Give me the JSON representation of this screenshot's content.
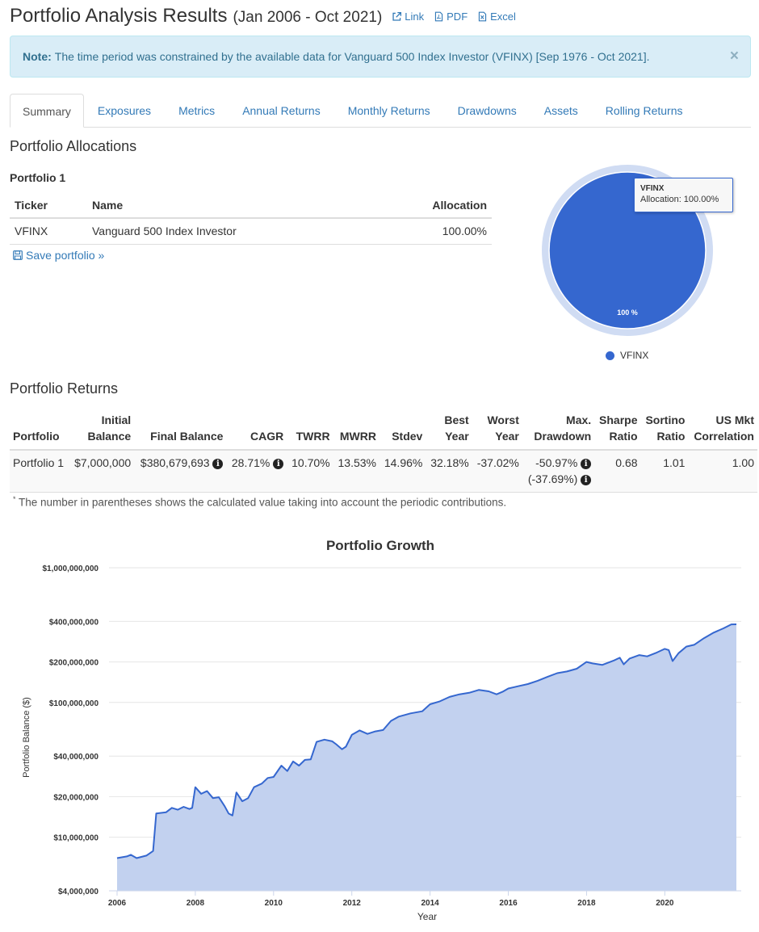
{
  "header": {
    "title": "Portfolio Analysis Results",
    "subtitle": "(Jan 2006 - Oct 2021)",
    "link_label": "Link",
    "pdf_label": "PDF",
    "excel_label": "Excel"
  },
  "alert": {
    "strong": "Note:",
    "text": "The time period was constrained by the available data for Vanguard 500 Index Investor (VFINX) [Sep 1976 - Oct 2021].",
    "close": "×"
  },
  "tabs": [
    "Summary",
    "Exposures",
    "Metrics",
    "Annual Returns",
    "Monthly Returns",
    "Drawdowns",
    "Assets",
    "Rolling Returns"
  ],
  "allocations": {
    "heading": "Portfolio Allocations",
    "portfolio_name": "Portfolio 1",
    "columns": [
      "Ticker",
      "Name",
      "Allocation"
    ],
    "rows": [
      {
        "ticker": "VFINX",
        "name": "Vanguard 500 Index Investor",
        "allocation": "100.00%"
      }
    ],
    "save_label": "Save portfolio »",
    "pie": {
      "tooltip_title": "VFINX",
      "tooltip_text": "Allocation: 100.00%",
      "slice_label": "100 %",
      "legend": "VFINX",
      "color": "#3567cf"
    }
  },
  "returns": {
    "heading": "Portfolio Returns",
    "columns": [
      [
        "Portfolio"
      ],
      [
        "Initial",
        "Balance"
      ],
      [
        "Final Balance"
      ],
      [
        "CAGR"
      ],
      [
        "TWRR"
      ],
      [
        "MWRR"
      ],
      [
        "Stdev"
      ],
      [
        "Best",
        "Year"
      ],
      [
        "Worst",
        "Year"
      ],
      [
        "Max.",
        "Drawdown"
      ],
      [
        "Sharpe",
        "Ratio"
      ],
      [
        "Sortino",
        "Ratio"
      ],
      [
        "US Mkt",
        "Correlation"
      ]
    ],
    "row": {
      "portfolio": "Portfolio 1",
      "initial_balance": "$7,000,000",
      "final_balance": "$380,679,693",
      "cagr": "28.71%",
      "twrr": "10.70%",
      "mwrr": "13.53%",
      "stdev": "14.96%",
      "best_year": "32.18%",
      "worst_year": "-37.02%",
      "max_drawdown": "-50.97%",
      "max_drawdown_contrib": "(-37.69%)",
      "sharpe": "0.68",
      "sortino": "1.01",
      "us_mkt_corr": "1.00"
    },
    "footnote_mark": "*",
    "footnote": "The number in parentheses shows the calculated value taking into account the periodic contributions."
  },
  "chart_data": {
    "type": "area",
    "title": "Portfolio Growth",
    "xlabel": "Year",
    "ylabel": "Portfolio Balance ($)",
    "yscale": "log",
    "ylim": [
      4000000,
      1000000000
    ],
    "xlim": [
      2006,
      2021.83
    ],
    "y_ticks": [
      {
        "v": 4000000,
        "label": "$4,000,000"
      },
      {
        "v": 10000000,
        "label": "$10,000,000"
      },
      {
        "v": 20000000,
        "label": "$20,000,000"
      },
      {
        "v": 40000000,
        "label": "$40,000,000"
      },
      {
        "v": 100000000,
        "label": "$100,000,000"
      },
      {
        "v": 200000000,
        "label": "$200,000,000"
      },
      {
        "v": 400000000,
        "label": "$400,000,000"
      },
      {
        "v": 1000000000,
        "label": "$1,000,000,000"
      }
    ],
    "x_ticks": [
      "2006",
      "2008",
      "2010",
      "2012",
      "2014",
      "2016",
      "2018",
      "2020"
    ],
    "colors": {
      "line": "#3567cf",
      "fill": "#c2d1ef"
    },
    "series": [
      {
        "x": [
          2006.0,
          2006.25,
          2006.35,
          2006.5,
          2006.75,
          2006.92,
          2007.0,
          2007.25,
          2007.4,
          2007.55,
          2007.7,
          2007.85,
          2007.92,
          2008.0,
          2008.15,
          2008.3,
          2008.45,
          2008.6,
          2008.75,
          2008.85,
          2008.95,
          2009.05,
          2009.2,
          2009.35,
          2009.5,
          2009.7,
          2009.85,
          2010.0,
          2010.2,
          2010.35,
          2010.5,
          2010.65,
          2010.8,
          2010.95,
          2011.1,
          2011.3,
          2011.5,
          2011.6,
          2011.75,
          2011.85,
          2012.0,
          2012.2,
          2012.4,
          2012.6,
          2012.8,
          2013.0,
          2013.2,
          2013.5,
          2013.8,
          2014.0,
          2014.25,
          2014.5,
          2014.75,
          2015.0,
          2015.25,
          2015.5,
          2015.7,
          2015.85,
          2016.0,
          2016.25,
          2016.5,
          2016.75,
          2017.0,
          2017.25,
          2017.5,
          2017.75,
          2018.0,
          2018.15,
          2018.4,
          2018.7,
          2018.85,
          2018.95,
          2019.1,
          2019.35,
          2019.55,
          2019.8,
          2020.0,
          2020.1,
          2020.2,
          2020.35,
          2020.55,
          2020.75,
          2021.0,
          2021.25,
          2021.5,
          2021.7,
          2021.83
        ],
        "y": [
          7000000,
          7200000,
          7400000,
          7000000,
          7300000,
          7900000,
          15000000,
          15300000,
          16500000,
          16000000,
          16800000,
          16200000,
          16500000,
          23500000,
          21000000,
          22000000,
          19500000,
          19800000,
          17000000,
          15000000,
          14500000,
          21500000,
          18500000,
          19500000,
          23500000,
          25000000,
          27500000,
          28000000,
          34000000,
          31000000,
          36500000,
          34000000,
          37500000,
          37800000,
          51000000,
          53000000,
          51500000,
          49000000,
          45000000,
          47000000,
          57500000,
          62000000,
          58500000,
          61000000,
          62500000,
          73000000,
          78500000,
          83000000,
          86000000,
          97000000,
          102000000,
          110000000,
          115000000,
          118000000,
          124000000,
          121000000,
          115000000,
          120000000,
          127000000,
          132000000,
          137000000,
          145000000,
          155000000,
          165000000,
          170000000,
          178000000,
          200000000,
          195000000,
          190000000,
          205000000,
          215000000,
          192000000,
          212000000,
          225000000,
          220000000,
          235000000,
          250000000,
          245000000,
          203000000,
          232000000,
          260000000,
          268000000,
          300000000,
          330000000,
          355000000,
          380000000,
          380679693
        ]
      }
    ]
  }
}
